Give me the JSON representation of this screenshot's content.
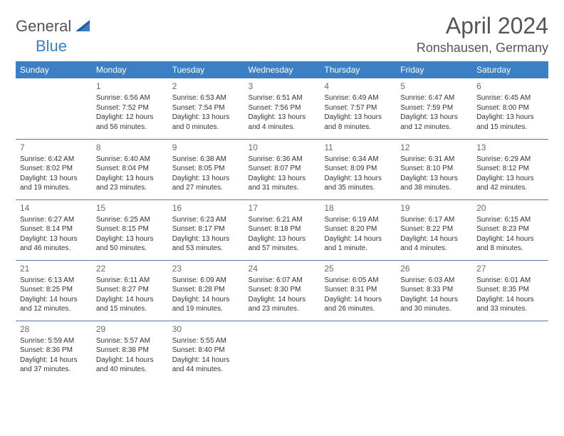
{
  "logo": {
    "part1": "General",
    "part2": "Blue"
  },
  "title": "April 2024",
  "location": "Ronshausen, Germany",
  "colors": {
    "header_bg": "#3b7fc4",
    "header_text": "#ffffff",
    "border": "#5a7a9a",
    "title_text": "#555555",
    "body_text": "#333333"
  },
  "weekdays": [
    "Sunday",
    "Monday",
    "Tuesday",
    "Wednesday",
    "Thursday",
    "Friday",
    "Saturday"
  ],
  "weeks": [
    [
      null,
      {
        "n": "1",
        "sr": "6:56 AM",
        "ss": "7:52 PM",
        "dl": "12 hours and 56 minutes."
      },
      {
        "n": "2",
        "sr": "6:53 AM",
        "ss": "7:54 PM",
        "dl": "13 hours and 0 minutes."
      },
      {
        "n": "3",
        "sr": "6:51 AM",
        "ss": "7:56 PM",
        "dl": "13 hours and 4 minutes."
      },
      {
        "n": "4",
        "sr": "6:49 AM",
        "ss": "7:57 PM",
        "dl": "13 hours and 8 minutes."
      },
      {
        "n": "5",
        "sr": "6:47 AM",
        "ss": "7:59 PM",
        "dl": "13 hours and 12 minutes."
      },
      {
        "n": "6",
        "sr": "6:45 AM",
        "ss": "8:00 PM",
        "dl": "13 hours and 15 minutes."
      }
    ],
    [
      {
        "n": "7",
        "sr": "6:42 AM",
        "ss": "8:02 PM",
        "dl": "13 hours and 19 minutes."
      },
      {
        "n": "8",
        "sr": "6:40 AM",
        "ss": "8:04 PM",
        "dl": "13 hours and 23 minutes."
      },
      {
        "n": "9",
        "sr": "6:38 AM",
        "ss": "8:05 PM",
        "dl": "13 hours and 27 minutes."
      },
      {
        "n": "10",
        "sr": "6:36 AM",
        "ss": "8:07 PM",
        "dl": "13 hours and 31 minutes."
      },
      {
        "n": "11",
        "sr": "6:34 AM",
        "ss": "8:09 PM",
        "dl": "13 hours and 35 minutes."
      },
      {
        "n": "12",
        "sr": "6:31 AM",
        "ss": "8:10 PM",
        "dl": "13 hours and 38 minutes."
      },
      {
        "n": "13",
        "sr": "6:29 AM",
        "ss": "8:12 PM",
        "dl": "13 hours and 42 minutes."
      }
    ],
    [
      {
        "n": "14",
        "sr": "6:27 AM",
        "ss": "8:14 PM",
        "dl": "13 hours and 46 minutes."
      },
      {
        "n": "15",
        "sr": "6:25 AM",
        "ss": "8:15 PM",
        "dl": "13 hours and 50 minutes."
      },
      {
        "n": "16",
        "sr": "6:23 AM",
        "ss": "8:17 PM",
        "dl": "13 hours and 53 minutes."
      },
      {
        "n": "17",
        "sr": "6:21 AM",
        "ss": "8:18 PM",
        "dl": "13 hours and 57 minutes."
      },
      {
        "n": "18",
        "sr": "6:19 AM",
        "ss": "8:20 PM",
        "dl": "14 hours and 1 minute."
      },
      {
        "n": "19",
        "sr": "6:17 AM",
        "ss": "8:22 PM",
        "dl": "14 hours and 4 minutes."
      },
      {
        "n": "20",
        "sr": "6:15 AM",
        "ss": "8:23 PM",
        "dl": "14 hours and 8 minutes."
      }
    ],
    [
      {
        "n": "21",
        "sr": "6:13 AM",
        "ss": "8:25 PM",
        "dl": "14 hours and 12 minutes."
      },
      {
        "n": "22",
        "sr": "6:11 AM",
        "ss": "8:27 PM",
        "dl": "14 hours and 15 minutes."
      },
      {
        "n": "23",
        "sr": "6:09 AM",
        "ss": "8:28 PM",
        "dl": "14 hours and 19 minutes."
      },
      {
        "n": "24",
        "sr": "6:07 AM",
        "ss": "8:30 PM",
        "dl": "14 hours and 23 minutes."
      },
      {
        "n": "25",
        "sr": "6:05 AM",
        "ss": "8:31 PM",
        "dl": "14 hours and 26 minutes."
      },
      {
        "n": "26",
        "sr": "6:03 AM",
        "ss": "8:33 PM",
        "dl": "14 hours and 30 minutes."
      },
      {
        "n": "27",
        "sr": "6:01 AM",
        "ss": "8:35 PM",
        "dl": "14 hours and 33 minutes."
      }
    ],
    [
      {
        "n": "28",
        "sr": "5:59 AM",
        "ss": "8:36 PM",
        "dl": "14 hours and 37 minutes."
      },
      {
        "n": "29",
        "sr": "5:57 AM",
        "ss": "8:38 PM",
        "dl": "14 hours and 40 minutes."
      },
      {
        "n": "30",
        "sr": "5:55 AM",
        "ss": "8:40 PM",
        "dl": "14 hours and 44 minutes."
      },
      null,
      null,
      null,
      null
    ]
  ],
  "labels": {
    "sunrise": "Sunrise:",
    "sunset": "Sunset:",
    "daylight": "Daylight:"
  }
}
